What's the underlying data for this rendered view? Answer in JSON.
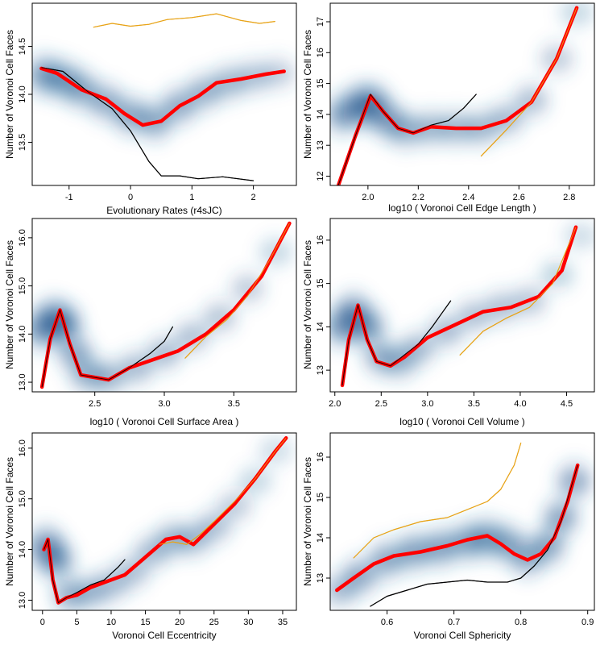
{
  "figure": {
    "panels": [
      {
        "id": "rates",
        "xlabel": "Evolutionary Rates (r4sJC)",
        "ylabel": "Number of Voronoi Cell Faces"
      },
      {
        "id": "edge",
        "xlabel": "log10 ( Voronoi Cell Edge Length )",
        "ylabel": "Number of Voronoi Cell Faces"
      },
      {
        "id": "area",
        "xlabel": "log10 ( Voronoi Cell Surface Area )",
        "ylabel": "Number of Voronoi Cell Faces"
      },
      {
        "id": "volume",
        "xlabel": "log10 ( Voronoi Cell Volume )",
        "ylabel": "Number of Voronoi Cell Faces"
      },
      {
        "id": "eccentricity",
        "xlabel": "Voronoi Cell Eccentricity",
        "ylabel": "Number of Voronoi Cell Faces"
      },
      {
        "id": "sphericity",
        "xlabel": "Voronoi Cell Sphericity",
        "ylabel": "Number of Voronoi Cell Faces"
      }
    ]
  },
  "chart_data": [
    {
      "type": "line",
      "xlabel": "Evolutionary Rates (r4sJC)",
      "ylabel": "Number of Voronoi Cell Faces",
      "xlim": [
        -1.6,
        2.7
      ],
      "ylim": [
        13.05,
        14.95
      ],
      "xticks": [
        "-1",
        "0",
        "1",
        "2"
      ],
      "yticks": [
        "13.5",
        "14.0",
        "14.5"
      ],
      "series": [
        {
          "color": "#e8a317",
          "x": [
            -0.6,
            -0.3,
            0,
            0.3,
            0.6,
            1.0,
            1.4,
            1.8,
            2.1,
            2.35
          ],
          "y": [
            14.7,
            14.74,
            14.71,
            14.73,
            14.78,
            14.8,
            14.84,
            14.77,
            14.74,
            14.76
          ]
        },
        {
          "color": "#ff0000",
          "x": [
            -1.45,
            -1.2,
            -0.8,
            -0.4,
            -0.1,
            0.2,
            0.5,
            0.8,
            1.1,
            1.4,
            1.8,
            2.2,
            2.5
          ],
          "y": [
            14.27,
            14.22,
            14.05,
            13.95,
            13.8,
            13.68,
            13.72,
            13.88,
            13.98,
            14.12,
            14.16,
            14.21,
            14.24
          ]
        },
        {
          "color": "#000000",
          "x": [
            -1.45,
            -1.1,
            -0.7,
            -0.3,
            0,
            0.3,
            0.5,
            0.8,
            1.1,
            1.5,
            2.0
          ],
          "y": [
            14.28,
            14.24,
            14.03,
            13.85,
            13.62,
            13.3,
            13.15,
            13.15,
            13.12,
            13.14,
            13.1
          ]
        }
      ],
      "density": {
        "x": [
          -1.4,
          -1.1,
          -0.8,
          -0.4,
          0,
          0.4,
          0.8,
          1.2,
          1.6,
          2.0,
          2.4
        ],
        "y": [
          14.2,
          14.15,
          14.05,
          13.92,
          13.78,
          13.72,
          13.88,
          14.02,
          14.12,
          14.18,
          14.22
        ],
        "strength": [
          0.9,
          0.85,
          0.8,
          0.75,
          0.8,
          0.8,
          0.75,
          0.7,
          0.65,
          0.55,
          0.45
        ]
      }
    },
    {
      "type": "line",
      "xlabel": "log10 ( Voronoi Cell Edge Length )",
      "ylabel": "Number of Voronoi Cell Faces",
      "xlim": [
        1.85,
        2.9
      ],
      "ylim": [
        11.7,
        17.6
      ],
      "xticks": [
        "2.0",
        "2.2",
        "2.4",
        "2.6",
        "2.8"
      ],
      "yticks": [
        "12",
        "13",
        "14",
        "15",
        "16",
        "17"
      ],
      "series": [
        {
          "color": "#e8a317",
          "x": [
            2.45,
            2.55,
            2.65,
            2.75,
            2.83
          ],
          "y": [
            12.65,
            13.5,
            14.4,
            15.8,
            17.45
          ]
        },
        {
          "color": "#ff0000",
          "x": [
            1.88,
            1.95,
            2.01,
            2.06,
            2.12,
            2.18,
            2.25,
            2.35,
            2.45,
            2.55,
            2.65,
            2.75,
            2.83
          ],
          "y": [
            11.65,
            13.3,
            14.6,
            14.1,
            13.55,
            13.4,
            13.6,
            13.55,
            13.55,
            13.8,
            14.4,
            15.8,
            17.45
          ]
        },
        {
          "color": "#000000",
          "x": [
            1.88,
            1.95,
            2.01,
            2.06,
            2.12,
            2.18,
            2.25,
            2.32,
            2.38,
            2.43
          ],
          "y": [
            11.65,
            13.3,
            14.65,
            14.1,
            13.55,
            13.4,
            13.65,
            13.8,
            14.2,
            14.65
          ]
        }
      ],
      "density": {
        "x": [
          1.9,
          1.97,
          2.02,
          2.08,
          2.15,
          2.25,
          2.35,
          2.45,
          2.55,
          2.65,
          2.75,
          2.83
        ],
        "y": [
          14.0,
          14.3,
          14.3,
          13.8,
          13.5,
          13.55,
          13.55,
          13.55,
          13.85,
          14.45,
          15.8,
          17.3
        ],
        "strength": [
          0.85,
          1.0,
          1.0,
          0.8,
          0.7,
          0.65,
          0.65,
          0.65,
          0.6,
          0.55,
          0.45,
          0.35
        ]
      }
    },
    {
      "type": "line",
      "xlabel": "log10 ( Voronoi Cell Surface Area )",
      "ylabel": "Number of Voronoi Cell Faces",
      "xlim": [
        2.05,
        3.95
      ],
      "ylim": [
        12.8,
        16.4
      ],
      "xticks": [
        "2.5",
        "3.0",
        "3.5"
      ],
      "yticks": [
        "13.0",
        "14.0",
        "15.0",
        "16.0"
      ],
      "series": [
        {
          "color": "#e8a317",
          "x": [
            3.15,
            3.3,
            3.45,
            3.6,
            3.75,
            3.9
          ],
          "y": [
            13.5,
            13.95,
            14.3,
            14.8,
            15.5,
            16.3
          ]
        },
        {
          "color": "#ff0000",
          "x": [
            2.12,
            2.18,
            2.25,
            2.32,
            2.4,
            2.5,
            2.6,
            2.75,
            2.9,
            3.1,
            3.3,
            3.5,
            3.7,
            3.9
          ],
          "y": [
            12.9,
            13.9,
            14.5,
            13.8,
            13.15,
            13.1,
            13.05,
            13.3,
            13.45,
            13.65,
            14.0,
            14.5,
            15.2,
            16.3
          ]
        },
        {
          "color": "#000000",
          "x": [
            2.12,
            2.18,
            2.25,
            2.32,
            2.4,
            2.5,
            2.6,
            2.75,
            2.9,
            3.0,
            3.06
          ],
          "y": [
            12.9,
            13.9,
            14.5,
            13.8,
            13.15,
            13.1,
            13.05,
            13.3,
            13.6,
            13.85,
            14.15
          ]
        }
      ],
      "density": {
        "x": [
          2.12,
          2.2,
          2.28,
          2.36,
          2.45,
          2.6,
          2.8,
          3.0,
          3.2,
          3.4,
          3.6,
          3.8
        ],
        "y": [
          14.1,
          14.3,
          14.2,
          13.6,
          13.15,
          13.1,
          13.3,
          13.6,
          13.95,
          14.35,
          14.95,
          15.7
        ],
        "strength": [
          0.9,
          1.0,
          0.95,
          0.75,
          0.7,
          0.65,
          0.6,
          0.6,
          0.55,
          0.5,
          0.45,
          0.35
        ]
      }
    },
    {
      "type": "line",
      "xlabel": "log10 ( Voronoi Cell Volume )",
      "ylabel": "Number of Voronoi Cell Faces",
      "xlim": [
        1.95,
        4.8
      ],
      "ylim": [
        12.5,
        16.5
      ],
      "xticks": [
        "2.0",
        "2.5",
        "3.0",
        "3.5",
        "4.0",
        "4.5"
      ],
      "yticks": [
        "13",
        "14",
        "15",
        "16"
      ],
      "series": [
        {
          "color": "#e8a317",
          "x": [
            3.35,
            3.6,
            3.85,
            4.1,
            4.35,
            4.6
          ],
          "y": [
            13.35,
            13.9,
            14.2,
            14.45,
            15.0,
            16.3
          ]
        },
        {
          "color": "#ff0000",
          "x": [
            2.08,
            2.15,
            2.25,
            2.35,
            2.45,
            2.6,
            2.75,
            3.0,
            3.3,
            3.6,
            3.9,
            4.2,
            4.45,
            4.6
          ],
          "y": [
            12.65,
            13.7,
            14.5,
            13.7,
            13.2,
            13.1,
            13.3,
            13.75,
            14.05,
            14.35,
            14.45,
            14.7,
            15.3,
            16.3
          ]
        },
        {
          "color": "#000000",
          "x": [
            2.08,
            2.15,
            2.25,
            2.35,
            2.45,
            2.6,
            2.75,
            2.9,
            3.05,
            3.15,
            3.25
          ],
          "y": [
            12.65,
            13.7,
            14.5,
            13.7,
            13.2,
            13.1,
            13.35,
            13.6,
            14.0,
            14.3,
            14.6
          ]
        }
      ],
      "density": {
        "x": [
          2.08,
          2.2,
          2.35,
          2.5,
          2.7,
          2.9,
          3.2,
          3.5,
          3.8,
          4.1,
          4.4,
          4.65
        ],
        "y": [
          14.0,
          14.3,
          14.0,
          13.3,
          13.2,
          13.5,
          13.9,
          14.25,
          14.45,
          14.6,
          15.2,
          16.1
        ],
        "strength": [
          0.9,
          1.0,
          0.9,
          0.7,
          0.65,
          0.6,
          0.6,
          0.55,
          0.55,
          0.5,
          0.4,
          0.3
        ]
      }
    },
    {
      "type": "line",
      "xlabel": "Voronoi Cell Eccentricity",
      "ylabel": "Number of Voronoi Cell Faces",
      "xlim": [
        -1.5,
        37
      ],
      "ylim": [
        12.8,
        16.3
      ],
      "xticks": [
        "0",
        "5",
        "10",
        "15",
        "20",
        "25",
        "30",
        "35"
      ],
      "yticks": [
        "13.0",
        "14.0",
        "15.0",
        "16.0"
      ],
      "series": [
        {
          "color": "#e8a317",
          "x": [
            17,
            19,
            21,
            23,
            25,
            28,
            31,
            34,
            35.5
          ],
          "y": [
            14.1,
            14.15,
            14.1,
            14.3,
            14.55,
            14.95,
            15.4,
            15.95,
            16.2
          ]
        },
        {
          "color": "#ff0000",
          "x": [
            0.2,
            0.8,
            1.5,
            2.3,
            3.5,
            5,
            7,
            9,
            12,
            15,
            18,
            20,
            22,
            25,
            28,
            31,
            34,
            35.5
          ],
          "y": [
            14.0,
            14.2,
            13.4,
            12.95,
            13.05,
            13.1,
            13.25,
            13.35,
            13.5,
            13.85,
            14.2,
            14.25,
            14.1,
            14.5,
            14.9,
            15.4,
            15.95,
            16.2
          ]
        },
        {
          "color": "#000000",
          "x": [
            0.2,
            0.8,
            1.5,
            2.3,
            3.5,
            5,
            7,
            9,
            11,
            12
          ],
          "y": [
            14.0,
            14.2,
            13.4,
            12.95,
            13.05,
            13.15,
            13.3,
            13.4,
            13.65,
            13.8
          ]
        }
      ],
      "density": {
        "x": [
          0.5,
          2,
          4,
          7,
          10,
          13,
          16,
          19,
          22,
          25,
          28,
          31,
          34
        ],
        "y": [
          14.05,
          13.8,
          13.1,
          13.15,
          13.3,
          13.55,
          13.95,
          14.2,
          14.2,
          14.45,
          14.85,
          15.35,
          15.95
        ],
        "strength": [
          1.0,
          0.9,
          0.7,
          0.6,
          0.55,
          0.55,
          0.6,
          0.65,
          0.6,
          0.55,
          0.45,
          0.35,
          0.3
        ]
      }
    },
    {
      "type": "line",
      "xlabel": "Voronoi Cell Sphericity",
      "ylabel": "Number of Voronoi Cell Faces",
      "xlim": [
        0.515,
        0.91
      ],
      "ylim": [
        12.2,
        16.6
      ],
      "xticks": [
        "0.6",
        "0.7",
        "0.8",
        "0.9"
      ],
      "yticks": [
        "13",
        "14",
        "15",
        "16"
      ],
      "series": [
        {
          "color": "#e8a317",
          "x": [
            0.55,
            0.58,
            0.61,
            0.65,
            0.69,
            0.72,
            0.75,
            0.77,
            0.79,
            0.8
          ],
          "y": [
            13.5,
            14.0,
            14.2,
            14.4,
            14.5,
            14.7,
            14.9,
            15.2,
            15.8,
            16.35
          ]
        },
        {
          "color": "#ff0000",
          "x": [
            0.525,
            0.55,
            0.58,
            0.61,
            0.65,
            0.69,
            0.72,
            0.75,
            0.77,
            0.79,
            0.81,
            0.83,
            0.85,
            0.87,
            0.885
          ],
          "y": [
            12.7,
            13.0,
            13.35,
            13.55,
            13.65,
            13.8,
            13.95,
            14.05,
            13.85,
            13.6,
            13.45,
            13.6,
            14.0,
            14.9,
            15.8
          ]
        },
        {
          "color": "#000000",
          "x": [
            0.575,
            0.6,
            0.63,
            0.66,
            0.69,
            0.72,
            0.75,
            0.78,
            0.8,
            0.82,
            0.84,
            0.86,
            0.885
          ],
          "y": [
            12.3,
            12.55,
            12.7,
            12.85,
            12.9,
            12.95,
            12.9,
            12.9,
            13.0,
            13.3,
            13.7,
            14.4,
            15.8
          ]
        }
      ],
      "density": {
        "x": [
          0.53,
          0.56,
          0.6,
          0.64,
          0.68,
          0.72,
          0.75,
          0.78,
          0.81,
          0.84,
          0.86,
          0.88
        ],
        "y": [
          12.7,
          13.05,
          13.45,
          13.65,
          13.75,
          13.9,
          14.0,
          13.85,
          13.5,
          13.8,
          14.5,
          15.4
        ],
        "strength": [
          0.6,
          0.75,
          0.8,
          0.85,
          0.85,
          0.85,
          0.85,
          0.8,
          0.75,
          0.8,
          0.8,
          0.75
        ]
      }
    }
  ]
}
